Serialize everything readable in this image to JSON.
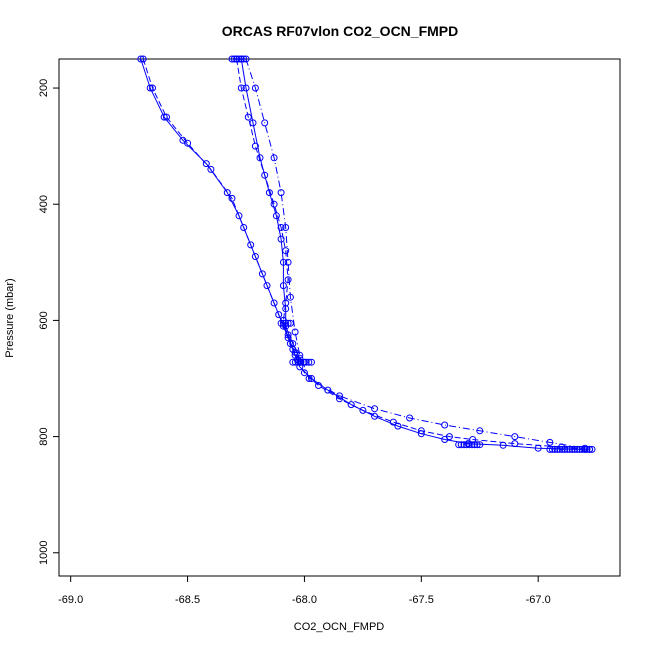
{
  "chart_data": {
    "type": "line",
    "title": "ORCAS RF07vlon CO2_OCN_FMPD",
    "xlabel": "CO2_OCN_FMPD",
    "ylabel": "Pressure (mbar)",
    "xlim": [
      -69.05,
      -66.65
    ],
    "ylim": [
      1040,
      150
    ],
    "y_inverted": true,
    "x_ticks": [
      -69.0,
      -68.5,
      -68.0,
      -67.5,
      -67.0
    ],
    "x_tick_labels": [
      "-69.0",
      "-68.5",
      "-68.0",
      "-67.5",
      "-67.0"
    ],
    "y_ticks": [
      200,
      400,
      600,
      800,
      1000
    ],
    "y_tick_labels": [
      "200",
      "400",
      "600",
      "800",
      "1000"
    ],
    "grid": false,
    "series_color": "#0000ff",
    "series": [
      {
        "line_style": "solid",
        "points": [
          [
            -68.7,
            150
          ],
          [
            -68.66,
            200
          ],
          [
            -68.6,
            250
          ],
          [
            -68.52,
            290
          ],
          [
            -68.42,
            330
          ],
          [
            -68.33,
            380
          ],
          [
            -68.28,
            420
          ],
          [
            -68.23,
            470
          ],
          [
            -68.18,
            520
          ],
          [
            -68.13,
            570
          ],
          [
            -68.09,
            610
          ],
          [
            -68.06,
            640
          ],
          [
            -68.04,
            660
          ],
          [
            -68.02,
            680
          ],
          [
            -67.97,
            700
          ],
          [
            -67.9,
            720
          ],
          [
            -67.8,
            745
          ],
          [
            -67.7,
            765
          ],
          [
            -67.6,
            782
          ],
          [
            -67.5,
            795
          ],
          [
            -67.4,
            805
          ],
          [
            -67.3,
            812
          ],
          [
            -67.15,
            815
          ],
          [
            -67.0,
            820
          ],
          [
            -66.8,
            822
          ]
        ]
      },
      {
        "line_style": "dashed",
        "points": [
          [
            -68.69,
            150
          ],
          [
            -68.65,
            200
          ],
          [
            -68.59,
            250
          ],
          [
            -68.5,
            295
          ],
          [
            -68.4,
            340
          ],
          [
            -68.31,
            390
          ],
          [
            -68.26,
            440
          ],
          [
            -68.21,
            490
          ],
          [
            -68.16,
            540
          ],
          [
            -68.11,
            590
          ],
          [
            -68.07,
            625
          ],
          [
            -68.05,
            650
          ],
          [
            -68.03,
            668
          ],
          [
            -68.0,
            690
          ],
          [
            -67.94,
            712
          ],
          [
            -67.85,
            735
          ],
          [
            -67.75,
            755
          ],
          [
            -67.62,
            775
          ],
          [
            -67.5,
            790
          ],
          [
            -67.38,
            800
          ],
          [
            -67.28,
            805
          ],
          [
            -67.1,
            812
          ],
          [
            -66.9,
            818
          ],
          [
            -66.78,
            822
          ]
        ]
      },
      {
        "line_style": "solid",
        "points": [
          [
            -68.27,
            150
          ],
          [
            -68.25,
            200
          ],
          [
            -68.22,
            260
          ],
          [
            -68.19,
            320
          ],
          [
            -68.15,
            380
          ],
          [
            -68.12,
            420
          ],
          [
            -68.1,
            460
          ],
          [
            -68.09,
            500
          ],
          [
            -68.09,
            540
          ],
          [
            -68.08,
            580
          ],
          [
            -68.08,
            610
          ],
          [
            -68.05,
            640
          ],
          [
            -68.02,
            665
          ],
          [
            -68.0,
            672
          ]
        ]
      },
      {
        "line_style": "dashed",
        "points": [
          [
            -68.29,
            150
          ],
          [
            -68.27,
            200
          ],
          [
            -68.24,
            250
          ],
          [
            -68.21,
            300
          ],
          [
            -68.17,
            350
          ],
          [
            -68.13,
            400
          ],
          [
            -68.1,
            440
          ],
          [
            -68.08,
            480
          ],
          [
            -68.07,
            530
          ],
          [
            -68.08,
            570
          ],
          [
            -68.09,
            600
          ],
          [
            -68.07,
            630
          ],
          [
            -68.04,
            655
          ],
          [
            -68.02,
            672
          ]
        ]
      },
      {
        "line_style": "dashdot",
        "points": [
          [
            -68.25,
            150
          ],
          [
            -68.21,
            200
          ],
          [
            -68.17,
            260
          ],
          [
            -68.13,
            320
          ],
          [
            -68.1,
            380
          ],
          [
            -68.08,
            440
          ],
          [
            -68.07,
            500
          ],
          [
            -68.06,
            560
          ],
          [
            -68.04,
            620
          ],
          [
            -68.02,
            660
          ],
          [
            -67.98,
            700
          ],
          [
            -67.85,
            730
          ],
          [
            -67.7,
            752
          ],
          [
            -67.55,
            768
          ],
          [
            -67.4,
            780
          ],
          [
            -67.25,
            790
          ],
          [
            -67.1,
            800
          ],
          [
            -66.95,
            810
          ],
          [
            -66.8,
            820
          ]
        ]
      }
    ],
    "clusters": [
      {
        "y": 150,
        "x_from": -68.31,
        "x_to": -68.26
      },
      {
        "y": 672,
        "x_from": -68.05,
        "x_to": -67.97
      },
      {
        "y": 605,
        "x_from": -68.1,
        "x_to": -68.06
      },
      {
        "y": 814,
        "x_from": -67.34,
        "x_to": -67.25
      },
      {
        "y": 822,
        "x_from": -66.95,
        "x_to": -66.77
      }
    ]
  }
}
